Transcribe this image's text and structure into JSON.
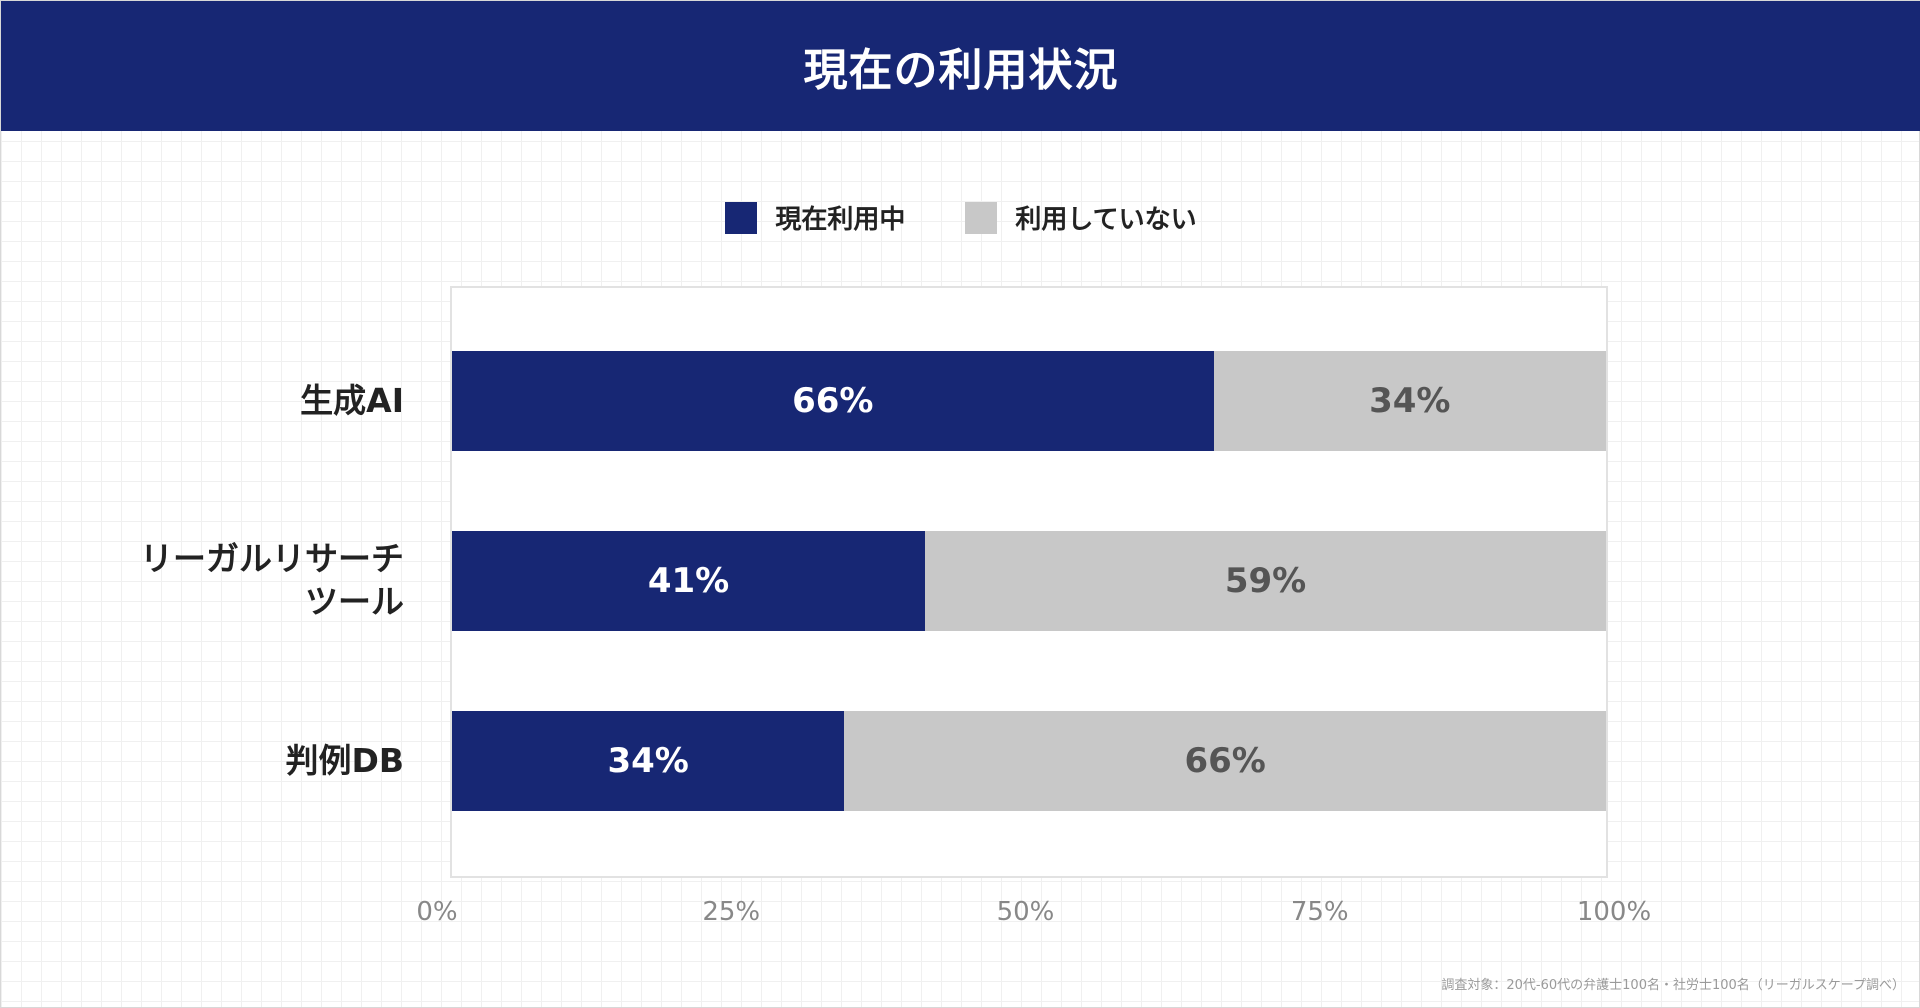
{
  "header": {
    "title": "現在の利用状況"
  },
  "footnote": "調査対象：20代-60代の弁護士100名・社労士100名（リーガルスケープ調べ）",
  "colors": {
    "header_bg": "#172774",
    "using": "#172774",
    "not_using": "#c8c8c8",
    "using_text": "#ffffff",
    "not_using_text": "#555555"
  },
  "chart_data": {
    "type": "bar",
    "orientation": "horizontal",
    "stacked": true,
    "title": "現在の利用状況",
    "categories": [
      "生成AI",
      "リーガルリサーチ\nツール",
      "判例DB"
    ],
    "series": [
      {
        "name": "現在利用中",
        "values": [
          66,
          41,
          34
        ],
        "labels": [
          "66%",
          "41%",
          "34%"
        ]
      },
      {
        "name": "利用していない",
        "values": [
          34,
          59,
          66
        ],
        "labels": [
          "34%",
          "59%",
          "66%"
        ]
      }
    ],
    "xlim": [
      0,
      100
    ],
    "x_ticks": [
      "0%",
      "25%",
      "50%",
      "75%",
      "100%"
    ],
    "legend_position": "top-center",
    "grid": false
  }
}
